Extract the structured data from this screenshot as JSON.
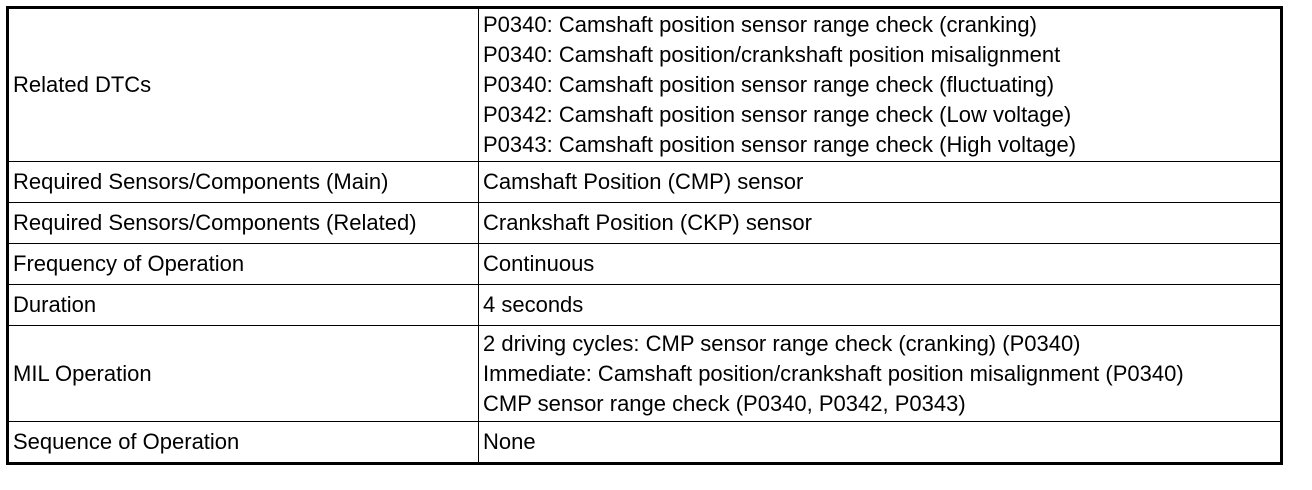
{
  "table": {
    "rows": [
      {
        "label": "Related DTCs",
        "lines": [
          "P0340: Camshaft position sensor range check (cranking)",
          "P0340: Camshaft position/crankshaft position misalignment",
          "P0340: Camshaft position sensor range check (fluctuating)",
          "P0342: Camshaft position sensor range check (Low voltage)",
          "P0343: Camshaft position sensor range check (High voltage)"
        ]
      },
      {
        "label": "Required Sensors/Components (Main)",
        "lines": [
          "Camshaft Position (CMP) sensor"
        ]
      },
      {
        "label": "Required Sensors/Components (Related)",
        "lines": [
          "Crankshaft Position (CKP) sensor"
        ]
      },
      {
        "label": "Frequency of Operation",
        "lines": [
          "Continuous"
        ]
      },
      {
        "label": "Duration",
        "lines": [
          "4 seconds"
        ]
      },
      {
        "label": "MIL Operation",
        "lines": [
          "2 driving cycles: CMP sensor range check (cranking) (P0340)",
          "Immediate: Camshaft position/crankshaft position misalignment (P0340)",
          "CMP sensor range check (P0340, P0342, P0343)"
        ]
      },
      {
        "label": "Sequence of Operation",
        "lines": [
          "None"
        ]
      }
    ]
  }
}
